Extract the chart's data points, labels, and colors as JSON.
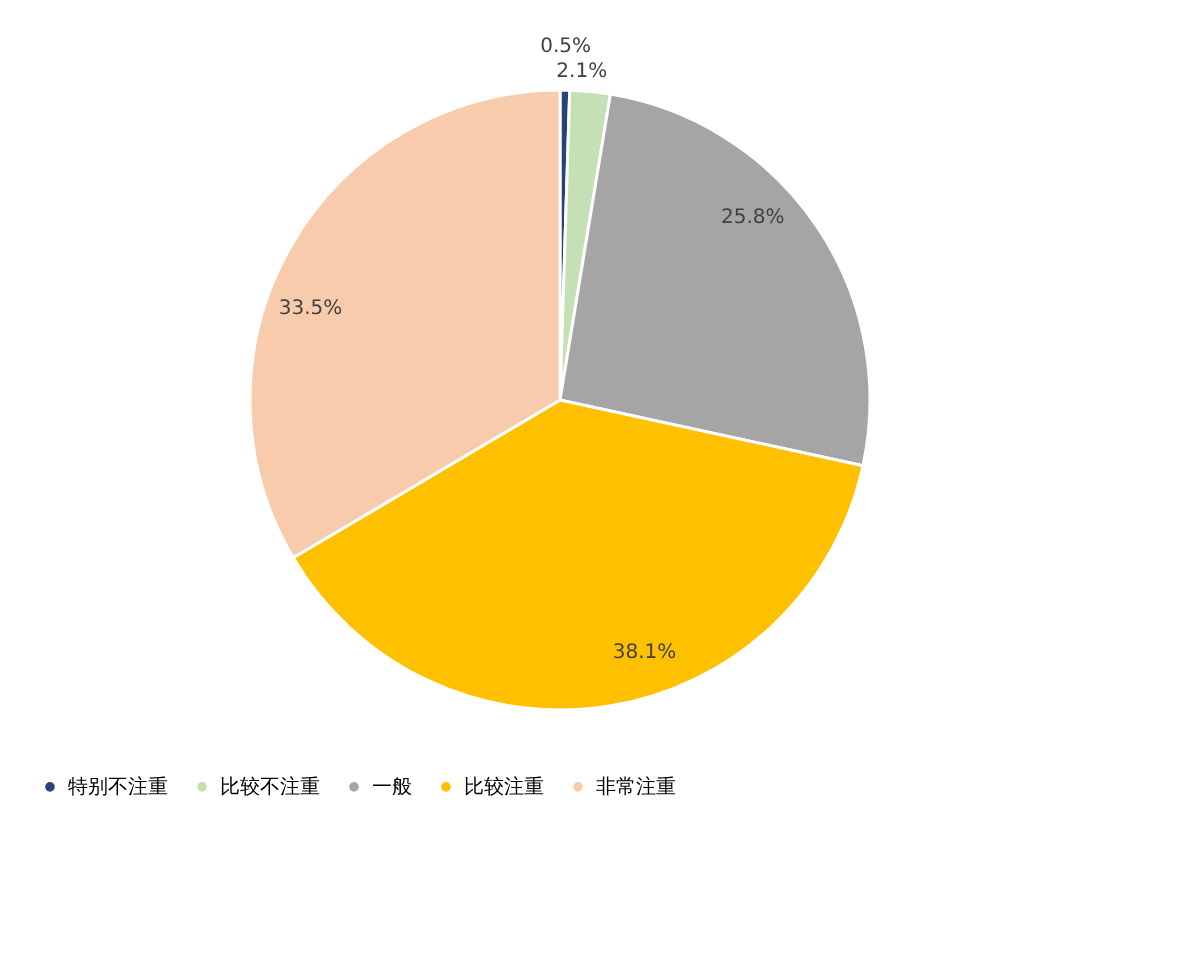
{
  "chart_data": {
    "type": "pie",
    "categories": [
      "特别不注重",
      "比较不注重",
      "一般",
      "比较注重",
      "非常注重"
    ],
    "values": [
      0.5,
      2.1,
      25.8,
      38.1,
      33.5
    ],
    "colors": [
      "#264478",
      "#c5e0b4",
      "#a5a5a5",
      "#ffc000",
      "#f8cbad"
    ],
    "value_labels": [
      "0.5%",
      "2.1%",
      "25.8%",
      "38.1%",
      "33.5%"
    ],
    "legend": "bottom"
  }
}
